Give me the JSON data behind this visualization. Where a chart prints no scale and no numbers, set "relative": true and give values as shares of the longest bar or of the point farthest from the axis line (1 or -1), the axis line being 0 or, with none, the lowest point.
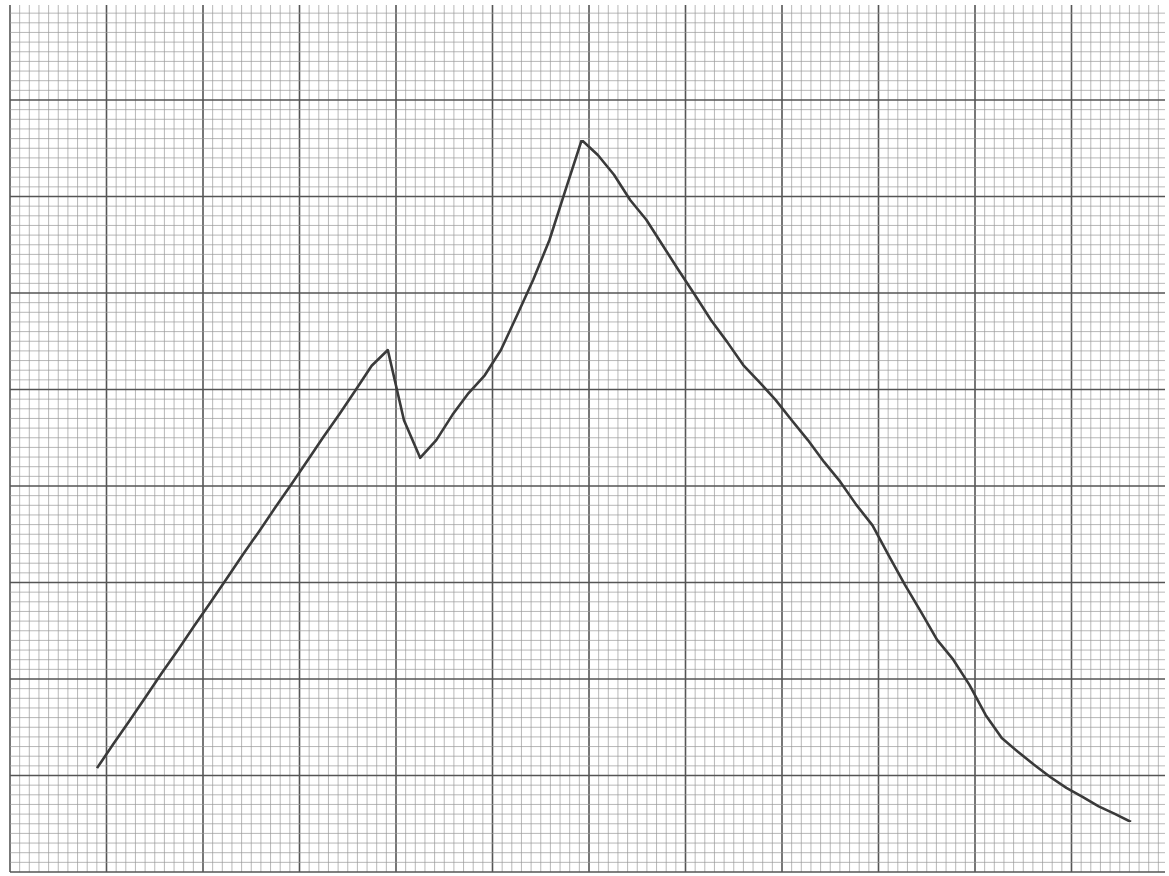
{
  "chart_data": {
    "type": "line",
    "relative": true,
    "grid": true,
    "marker": "none",
    "line_style": "solid",
    "legend": false,
    "categories": [
      null,
      null,
      null,
      null,
      null,
      null,
      null,
      null,
      null,
      null,
      null,
      null,
      null,
      null,
      null,
      null,
      null,
      null,
      null,
      null,
      null,
      null,
      null,
      null,
      null,
      null,
      null,
      null,
      null,
      null,
      null,
      null,
      null,
      null,
      null,
      null,
      null,
      null,
      null,
      null,
      null,
      null,
      null,
      null,
      null,
      null,
      null,
      null,
      null,
      null,
      null,
      null,
      null,
      null,
      null,
      null,
      null,
      null,
      null,
      null,
      null,
      null,
      null,
      null,
      null
    ],
    "series": [
      {
        "color": "#3a3a3a",
        "values": [
          0.079,
          0.114,
          0.148,
          0.183,
          0.218,
          0.252,
          0.287,
          0.321,
          0.356,
          0.391,
          0.425,
          0.46,
          0.494,
          0.529,
          0.564,
          0.598,
          0.633,
          0.669,
          0.692,
          0.589,
          0.534,
          0.56,
          0.597,
          0.629,
          0.655,
          0.692,
          0.743,
          0.795,
          0.853,
          0.927,
          1,
          0.978,
          0.949,
          0.912,
          0.883,
          0.846,
          0.809,
          0.773,
          0.736,
          0.704,
          0.67,
          0.645,
          0.619,
          0.589,
          0.56,
          0.528,
          0.499,
          0.465,
          0.435,
          0.391,
          0.348,
          0.308,
          0.267,
          0.238,
          0.201,
          0.157,
          0.123,
          0.103,
          0.084,
          0.066,
          0.05,
          0.037,
          0.023,
          0.012,
          0
        ]
      }
    ]
  }
}
